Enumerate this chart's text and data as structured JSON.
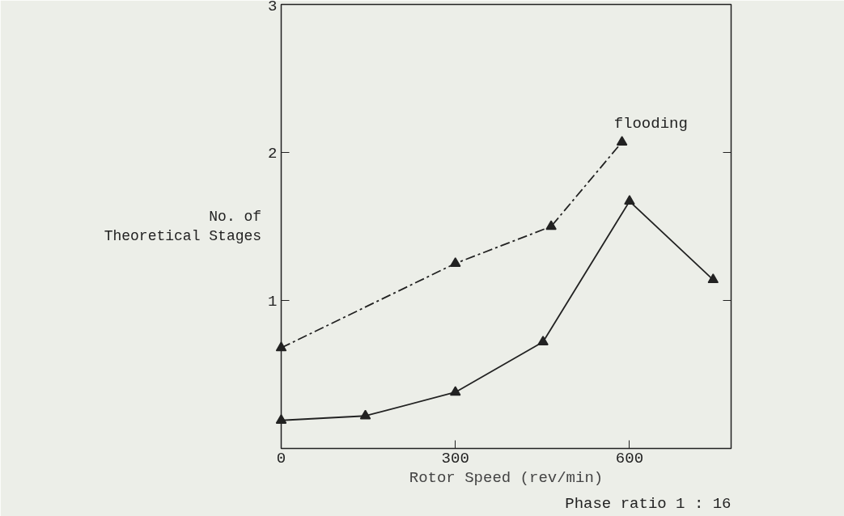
{
  "chart_data": {
    "type": "line",
    "ylabel": "No. of\nTheoretical Stages",
    "xlabel": "Rotor Speed (rev/min)",
    "xlim": [
      0,
      775
    ],
    "ylim": [
      0,
      3
    ],
    "xticks": [
      0,
      300,
      600
    ],
    "yticks": [
      1,
      2,
      3
    ],
    "grid": false,
    "series": [
      {
        "color": "#222222",
        "line_style": "dashed",
        "marker": "triangle",
        "x": [
          0,
          300,
          465,
          587
        ],
        "values": [
          0.68,
          1.25,
          1.5,
          2.07
        ]
      },
      {
        "color": "#222222",
        "line_style": "solid",
        "marker": "triangle",
        "x": [
          0,
          145,
          300,
          451,
          600,
          744
        ],
        "values": [
          0.19,
          0.22,
          0.38,
          0.72,
          1.67,
          1.14
        ]
      }
    ],
    "annotations": [
      {
        "text": "flooding",
        "x": 587,
        "y": 2.07
      },
      "Phase ratio 1 : 16"
    ]
  }
}
